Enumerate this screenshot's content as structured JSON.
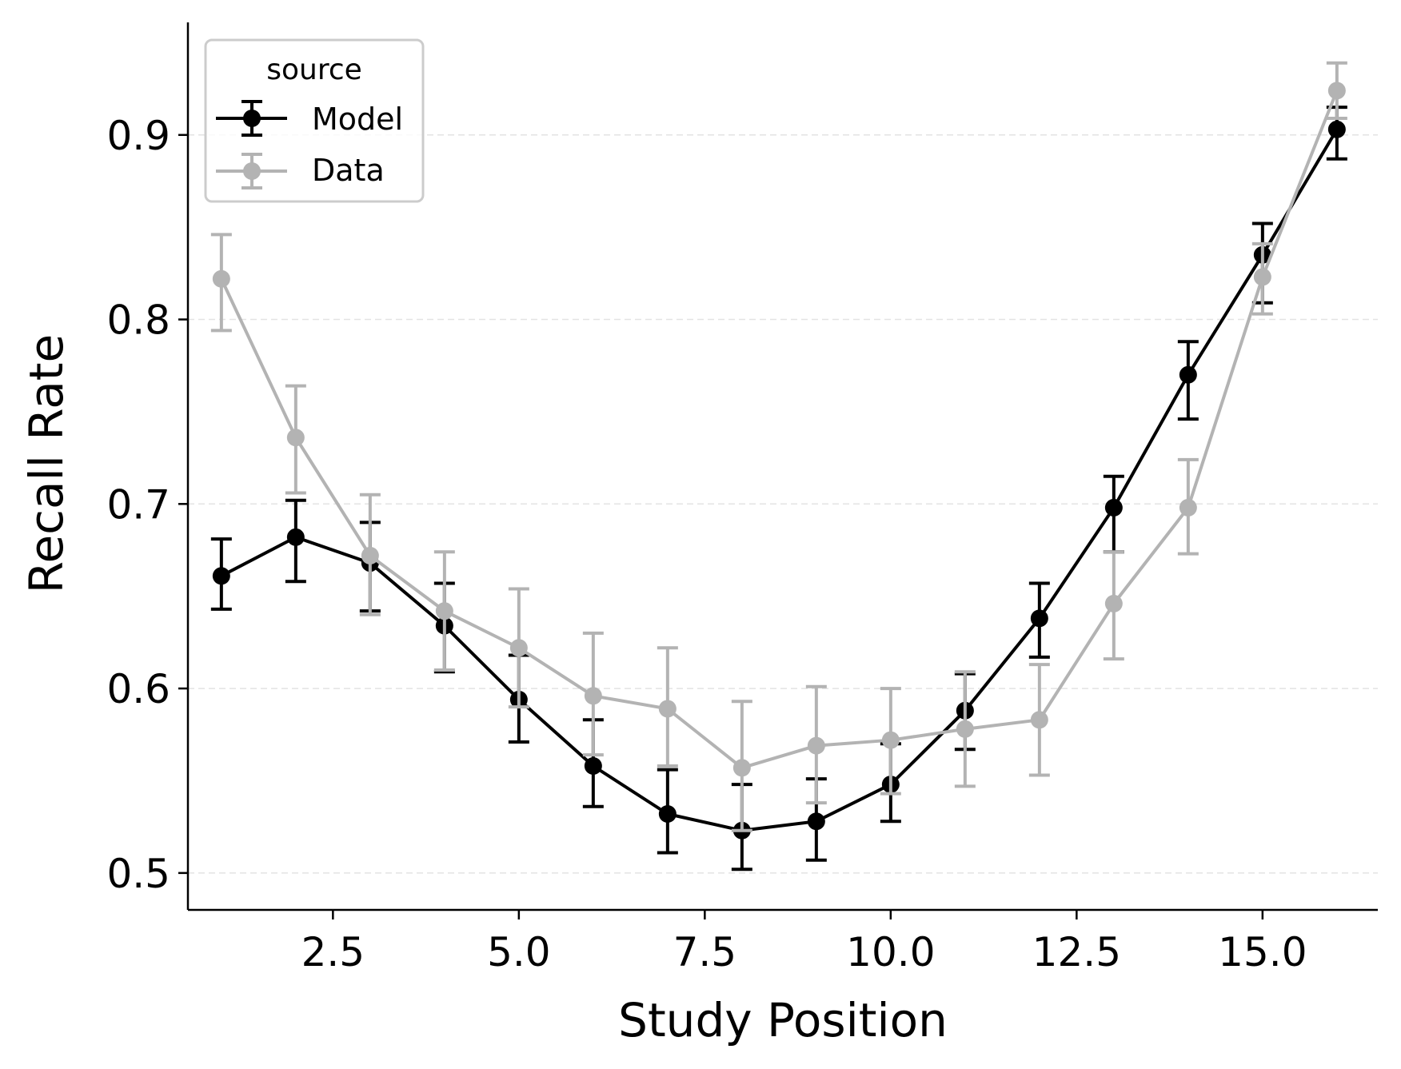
{
  "chart_data": {
    "type": "line",
    "title": "",
    "xlabel": "Study Position",
    "ylabel": "Recall Rate",
    "xlim": [
      0.55,
      16.55
    ],
    "ylim": [
      0.48,
      0.961
    ],
    "xticks": [
      2.5,
      5.0,
      7.5,
      10.0,
      12.5,
      15.0
    ],
    "xtick_labels": [
      "2.5",
      "5.0",
      "7.5",
      "10.0",
      "12.5",
      "15.0"
    ],
    "yticks": [
      0.5,
      0.6,
      0.7,
      0.8,
      0.9
    ],
    "ytick_labels": [
      "0.5",
      "0.6",
      "0.7",
      "0.8",
      "0.9"
    ],
    "grid": "y-dashed",
    "legend": {
      "title": "source",
      "placement": "top-left"
    },
    "x": [
      1,
      2,
      3,
      4,
      5,
      6,
      7,
      8,
      9,
      10,
      11,
      12,
      13,
      14,
      15,
      16
    ],
    "series": [
      {
        "name": "Model",
        "color": "#000000",
        "values": [
          0.661,
          0.682,
          0.668,
          0.634,
          0.594,
          0.558,
          0.532,
          0.523,
          0.528,
          0.548,
          0.588,
          0.638,
          0.698,
          0.77,
          0.835,
          0.903
        ],
        "err_low": [
          0.643,
          0.658,
          0.642,
          0.609,
          0.571,
          0.536,
          0.511,
          0.502,
          0.507,
          0.528,
          0.567,
          0.617,
          0.674,
          0.746,
          0.809,
          0.887
        ],
        "err_high": [
          0.681,
          0.702,
          0.69,
          0.657,
          0.618,
          0.583,
          0.556,
          0.548,
          0.551,
          0.57,
          0.608,
          0.657,
          0.715,
          0.788,
          0.852,
          0.915
        ]
      },
      {
        "name": "Data",
        "color": "#b3b3b3",
        "values": [
          0.822,
          0.736,
          0.672,
          0.642,
          0.622,
          0.596,
          0.589,
          0.557,
          0.569,
          0.572,
          0.578,
          0.583,
          0.646,
          0.698,
          0.823,
          0.924
        ],
        "err_low": [
          0.794,
          0.706,
          0.64,
          0.61,
          0.59,
          0.564,
          0.558,
          0.523,
          0.538,
          0.543,
          0.547,
          0.553,
          0.616,
          0.673,
          0.803,
          0.909
        ],
        "err_high": [
          0.846,
          0.764,
          0.705,
          0.674,
          0.654,
          0.63,
          0.622,
          0.593,
          0.601,
          0.6,
          0.609,
          0.613,
          0.674,
          0.724,
          0.841,
          0.939
        ]
      }
    ]
  }
}
